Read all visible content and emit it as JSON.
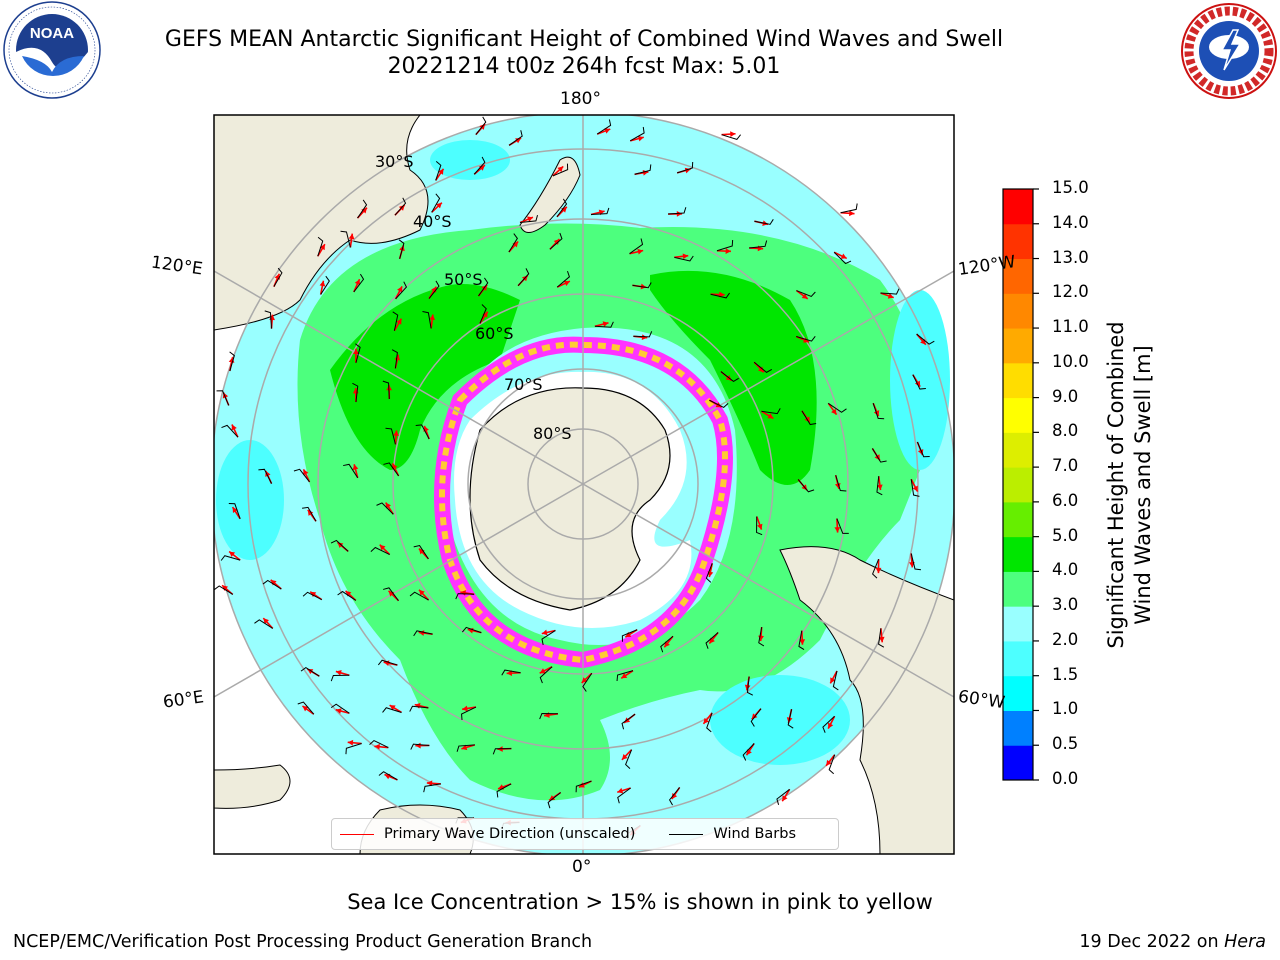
{
  "title": {
    "line1": "GEFS MEAN Antarctic Significant Height of Combined Wind Waves and Swell",
    "line2": "20221214 t00z 264h fcst   Max: 5.01"
  },
  "logos": {
    "left": {
      "name": "NOAA",
      "text": "NOAA",
      "ring_text": "NATIONAL OCEANIC AND ATMOSPHERIC ADMINISTRATION · U.S. DEPARTMENT OF COMMERCE"
    },
    "right": {
      "name": "National Weather Service",
      "ring_text": "NATIONAL WEATHER SERVICE"
    }
  },
  "map": {
    "projection": "South polar stereographic",
    "longitude_labels": {
      "top": "180°",
      "bottom": "0°",
      "upper_left": "120°E",
      "upper_right": "120°W",
      "lower_left": "60°E",
      "lower_right": "60°W"
    },
    "latitude_labels": [
      "30°S",
      "40°S",
      "50°S",
      "60°S",
      "70°S",
      "80°S"
    ],
    "colors": {
      "land": "#eeecdc",
      "ocean_low": "#00ffff",
      "ocean_mid": "#99ffff",
      "ocean_high": "#4dff7e",
      "ocean_peak": "#00e600",
      "ice_pink": "#ff33ff",
      "ice_yellow": "#ffcc33",
      "arrow": "#ff0000",
      "barb": "#000000",
      "grid": "#aaaaaa"
    }
  },
  "legend": {
    "items": [
      {
        "label": "Primary Wave Direction (unscaled)",
        "color": "#ff0000"
      },
      {
        "label": "Wind Barbs",
        "color": "#000000"
      }
    ]
  },
  "colorbar": {
    "label_line1": "Significant Height of Combined",
    "label_line2": "Wind Waves and Swell [m]",
    "ticks": [
      "0.0",
      "0.5",
      "1.0",
      "1.5",
      "2.0",
      "3.0",
      "4.0",
      "5.0",
      "6.0",
      "7.0",
      "8.0",
      "9.0",
      "10.0",
      "11.0",
      "12.0",
      "13.0",
      "14.0",
      "15.0"
    ],
    "colors": [
      "#0000ff",
      "#0080ff",
      "#00ffff",
      "#4dffff",
      "#99ffff",
      "#4dff7e",
      "#00e600",
      "#66ee00",
      "#bbee00",
      "#ddee00",
      "#ffff00",
      "#ffdd00",
      "#ffaa00",
      "#ff8800",
      "#ff6600",
      "#ff3300",
      "#ff0000"
    ]
  },
  "footer": {
    "note": "Sea Ice Concentration > 15% is shown in pink to yellow",
    "credit": "NCEP/EMC/Verification Post Processing Product Generation Branch",
    "date": "19 Dec 2022 on",
    "machine": "Hera"
  }
}
